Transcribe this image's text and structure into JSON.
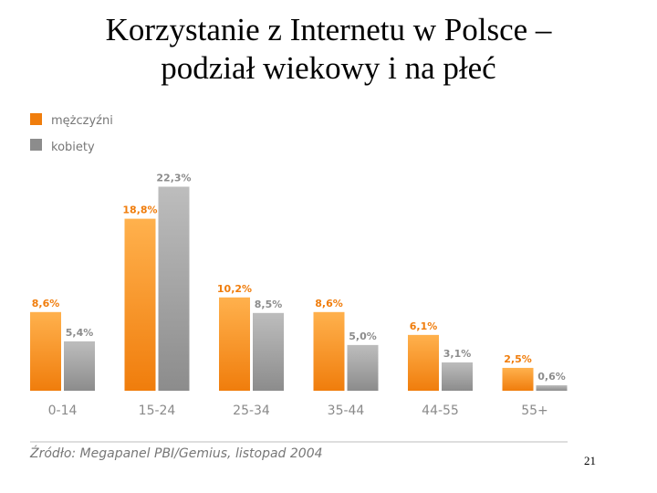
{
  "slide": {
    "title_line1": "Korzystanie z Internetu w Polsce –",
    "title_line2": "podział wiekowy i na płeć",
    "source": "Źródło: Megapanel PBI/Gemius, listopad 2004",
    "page_number": "21"
  },
  "colors": {
    "men_top": "#ffb14d",
    "men_bottom": "#f07d0c",
    "women_top": "#bdbdbd",
    "women_bottom": "#8c8c8c",
    "men_label": "#f07d0c",
    "women_label": "#8c8c8c"
  },
  "chart_data": {
    "type": "bar",
    "title": "",
    "xlabel": "",
    "ylabel": "",
    "ylim": [
      0,
      25
    ],
    "grid": false,
    "legend_position": "top-left",
    "categories": [
      "0-14",
      "15-24",
      "25-34",
      "35-44",
      "44-55",
      "55+"
    ],
    "series": [
      {
        "name": "mężczyźni",
        "values": [
          8.6,
          18.8,
          10.2,
          8.6,
          6.1,
          2.5
        ],
        "labels": [
          "8,6%",
          "18,8%",
          "10,2%",
          "8,6%",
          "6,1%",
          "2,5%"
        ]
      },
      {
        "name": "kobiety",
        "values": [
          5.4,
          22.3,
          8.5,
          5.0,
          3.1,
          0.6
        ],
        "labels": [
          "5,4%",
          "22,3%",
          "8,5%",
          "5,0%",
          "3,1%",
          "0,6%"
        ]
      }
    ]
  }
}
